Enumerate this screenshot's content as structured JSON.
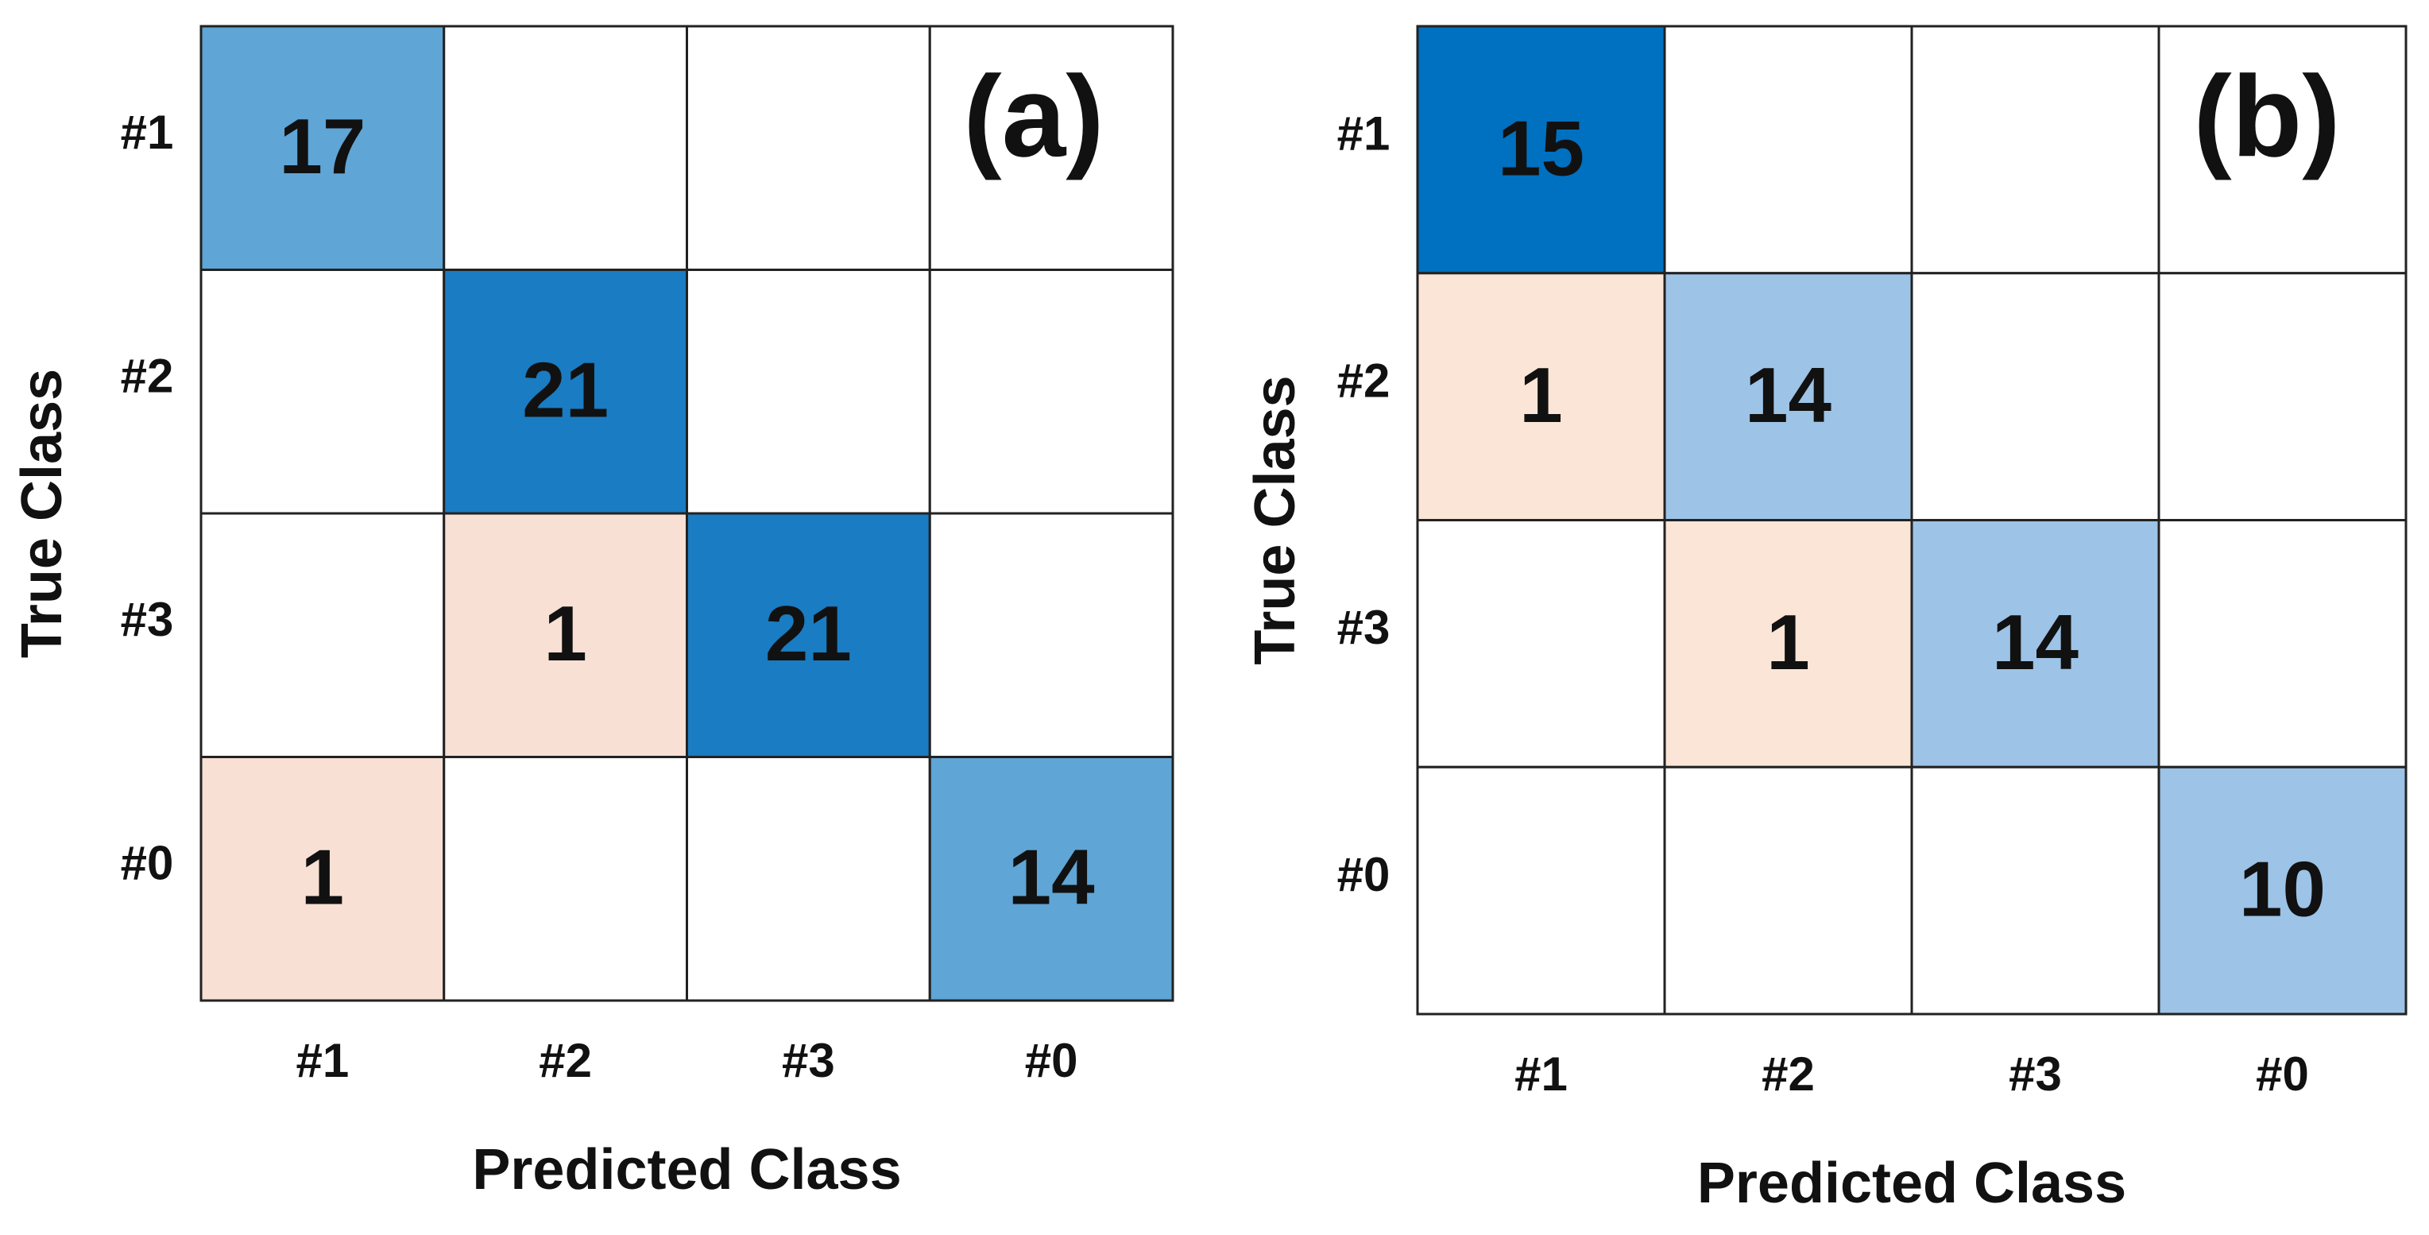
{
  "chart_data": [
    {
      "type": "heatmap",
      "panel_label": "(a)",
      "x_label": "Predicted Class",
      "y_label": "True Class",
      "x_categories": [
        "#1",
        "#2",
        "#3",
        "#0"
      ],
      "y_categories": [
        "#1",
        "#2",
        "#3",
        "#0"
      ],
      "values": [
        [
          17,
          null,
          null,
          null
        ],
        [
          null,
          21,
          null,
          null
        ],
        [
          null,
          1,
          21,
          null
        ],
        [
          1,
          null,
          null,
          14
        ]
      ],
      "colors": [
        [
          "#5fa5d5",
          null,
          null,
          null
        ],
        [
          null,
          "#1a7cc2",
          null,
          null
        ],
        [
          null,
          "#f8e0d5",
          "#1a7cc2",
          null
        ],
        [
          "#f8e0d5",
          null,
          null,
          "#5fa5d5"
        ]
      ]
    },
    {
      "type": "heatmap",
      "panel_label": "(b)",
      "x_label": "Predicted Class",
      "y_label": "True Class",
      "x_categories": [
        "#1",
        "#2",
        "#3",
        "#0"
      ],
      "y_categories": [
        "#1",
        "#2",
        "#3",
        "#0"
      ],
      "values": [
        [
          15,
          null,
          null,
          null
        ],
        [
          1,
          14,
          null,
          null
        ],
        [
          null,
          1,
          14,
          null
        ],
        [
          null,
          null,
          null,
          10
        ]
      ],
      "colors": [
        [
          "#0070c0",
          null,
          null,
          null
        ],
        [
          "#fbe5d6",
          "#9dc3e6",
          null,
          null
        ],
        [
          null,
          "#fbe5d6",
          "#9dc3e6",
          null
        ],
        [
          null,
          null,
          null,
          "#9dc3e6"
        ]
      ]
    }
  ]
}
